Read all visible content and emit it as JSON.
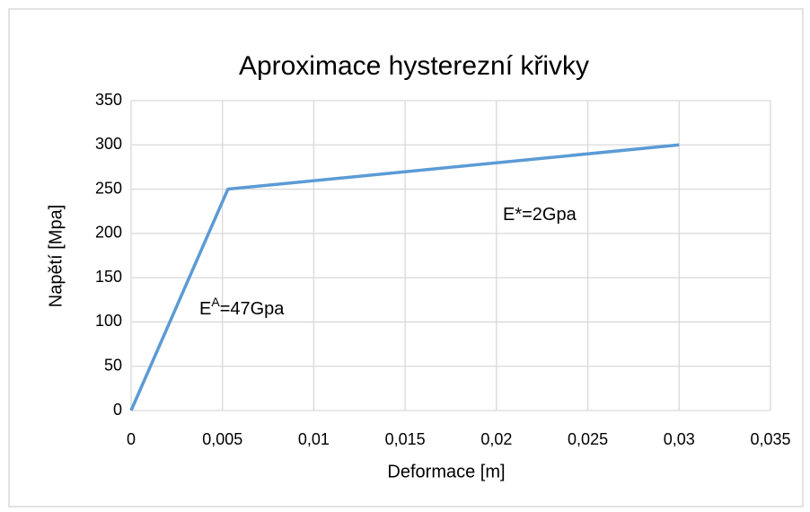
{
  "chart_data": {
    "type": "line",
    "title": "Aproximace hysterezní křivky",
    "x_label": "Deformace [m]",
    "y_label": "Napětí [Mpa]",
    "x": [
      0,
      0.0053,
      0.03
    ],
    "series": [
      {
        "color": "#5b9bd5",
        "values": [
          0,
          250,
          300
        ]
      }
    ],
    "xlim": [
      0,
      0.035
    ],
    "xticks": [
      0,
      {
        "value": 0.005,
        "label": "0,005"
      },
      {
        "value": 0.01,
        "label": "0,01"
      },
      {
        "value": 0.015,
        "label": "0,015"
      },
      {
        "value": 0.02,
        "label": "0,02"
      },
      {
        "value": 0.025,
        "label": "0,025"
      },
      {
        "value": 0.03,
        "label": "0,03"
      },
      {
        "value": 0.035,
        "label": "0,035"
      }
    ],
    "ylim": [
      0,
      350
    ],
    "yticks": [
      0,
      50,
      100,
      150,
      200,
      250,
      300,
      350
    ],
    "grid": true,
    "annotations": [
      {
        "parts": [
          "E*=2Gpa"
        ]
      },
      {
        "parts": [
          "E",
          "A",
          "=47Gpa"
        ]
      }
    ]
  }
}
